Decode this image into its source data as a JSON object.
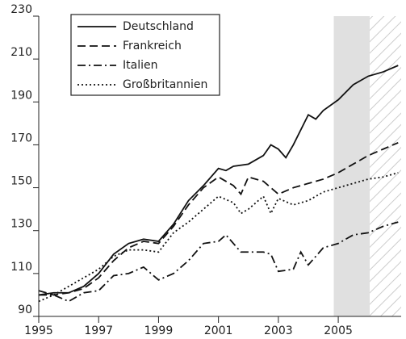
{
  "chart_data": {
    "type": "line",
    "xlim": [
      1995,
      2007.1
    ],
    "xticks": [
      1995,
      1997,
      1999,
      2001,
      2003,
      2005
    ],
    "ylim": [
      90,
      230
    ],
    "yticks": [
      90,
      110,
      130,
      150,
      170,
      190,
      210,
      230
    ],
    "legend": "upper left",
    "bands": [
      {
        "x": [
          2004.85,
          2006.05
        ],
        "style": "solid",
        "color": "#e0e0e0"
      },
      {
        "x": [
          2006.05,
          2007.1
        ],
        "style": "hatch",
        "color": "#cccccc"
      }
    ],
    "series": [
      {
        "name": "Deutschland",
        "color": "#111111",
        "dash": "none",
        "x": [
          1995,
          1995.5,
          1996,
          1996.5,
          1997,
          1997.5,
          1998,
          1998.5,
          1999,
          1999.5,
          2000,
          2000.5,
          2001,
          2001.25,
          2001.5,
          2002,
          2002.5,
          2002.75,
          2003,
          2003.25,
          2003.5,
          2004,
          2004.25,
          2004.5,
          2005,
          2005.5,
          2006,
          2006.5,
          2007
        ],
        "values": [
          100,
          101,
          101,
          104,
          110,
          119,
          124,
          126,
          125,
          133,
          144,
          151,
          159,
          158,
          160,
          161,
          165,
          170,
          168,
          164,
          170,
          184,
          182,
          186,
          191,
          198,
          202,
          204,
          207
        ]
      },
      {
        "name": "Frankreich",
        "color": "#111111",
        "dash": "10 5",
        "x": [
          1995,
          1995.5,
          1996,
          1996.5,
          1997,
          1997.5,
          1998,
          1998.5,
          1999,
          1999.5,
          2000,
          2000.5,
          2001,
          2001.5,
          2001.75,
          2002,
          2002.5,
          2003,
          2003.5,
          2004,
          2004.5,
          2005,
          2005.5,
          2006,
          2006.5,
          2007
        ],
        "values": [
          102,
          100,
          101,
          103,
          108,
          116,
          122,
          125,
          124,
          132,
          142,
          150,
          155,
          151,
          147,
          155,
          153,
          147,
          150,
          152,
          154,
          157,
          161,
          165,
          168,
          171
        ]
      },
      {
        "name": "Italien",
        "color": "#111111",
        "dash": "10 4 2 4",
        "x": [
          1995,
          1995.5,
          1996,
          1996.5,
          1997,
          1997.5,
          1998,
          1998.5,
          1999,
          1999.5,
          2000,
          2000.5,
          2001,
          2001.25,
          2001.75,
          2002,
          2002.5,
          2002.75,
          2003,
          2003.5,
          2003.75,
          2004,
          2004.5,
          2005,
          2005.5,
          2006,
          2006.5,
          2007
        ],
        "values": [
          100,
          100,
          97,
          101,
          102,
          109,
          110,
          113,
          107,
          110,
          116,
          124,
          125,
          128,
          120,
          120,
          120,
          119,
          111,
          112,
          120,
          114,
          122,
          124,
          128,
          129,
          132,
          134
        ]
      },
      {
        "name": "Großbritannien",
        "color": "#111111",
        "dash": "2 3",
        "x": [
          1995,
          1995.5,
          1996,
          1996.5,
          1997,
          1997.5,
          1998,
          1998.5,
          1999,
          1999.5,
          2000,
          2000.5,
          2001,
          2001.5,
          2001.75,
          2002,
          2002.5,
          2002.75,
          2003,
          2003.5,
          2004,
          2004.5,
          2005,
          2005.5,
          2006,
          2006.5,
          2007
        ],
        "values": [
          97,
          100,
          104,
          108,
          112,
          118,
          121,
          121,
          120,
          129,
          134,
          140,
          146,
          143,
          138,
          140,
          146,
          138,
          145,
          142,
          144,
          148,
          150,
          152,
          154,
          155,
          157
        ]
      }
    ]
  }
}
